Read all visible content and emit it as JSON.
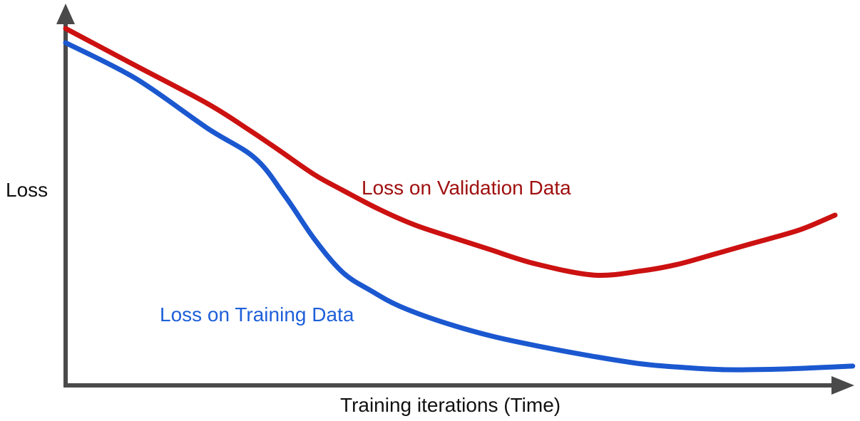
{
  "colors": {
    "background": "#ffffff",
    "axis": "#4a4a4a",
    "axis_text": "#111111",
    "validation_curve": "#cc1111",
    "validation_label": "#a00f0f",
    "training_curve": "#1b58d0",
    "training_label": "#1e5fd9"
  },
  "labels": {
    "y_axis": "Loss",
    "x_axis": "Training iterations (Time)",
    "validation_series": "Loss on Validation Data",
    "training_series": "Loss on Training Data"
  },
  "chart_data": {
    "type": "line",
    "title": "",
    "xlabel": "Training iterations (Time)",
    "ylabel": "Loss",
    "axes_style": "arrow axes, no tick marks or numeric labels; values normalized 0-100",
    "grid": false,
    "legend_position": "inline text labels next to curves",
    "x_range": [
      0,
      100
    ],
    "y_range": [
      0,
      100
    ],
    "series": [
      {
        "name": "Loss on Validation Data",
        "color": "#cc1111",
        "label_color": "#a00f0f",
        "shape": "decreases to a minimum then rises (overfitting)",
        "points": [
          [
            0,
            100
          ],
          [
            9.1,
            89.6
          ],
          [
            18.4,
            79.0
          ],
          [
            23.9,
            71.5
          ],
          [
            27.6,
            66.1
          ],
          [
            32.3,
            59.1
          ],
          [
            36.0,
            54.7
          ],
          [
            40.6,
            49.5
          ],
          [
            45.2,
            45.1
          ],
          [
            49.9,
            41.7
          ],
          [
            55.1,
            38.1
          ],
          [
            61.0,
            34.1
          ],
          [
            68.7,
            30.9
          ],
          [
            74.9,
            32.1
          ],
          [
            79.5,
            33.9
          ],
          [
            84.2,
            36.7
          ],
          [
            89.1,
            39.7
          ],
          [
            95.3,
            43.5
          ],
          [
            100,
            47.7
          ]
        ]
      },
      {
        "name": "Loss on Training Data",
        "color": "#1b58d0",
        "label_color": "#1e5fd9",
        "shape": "monotonically decreases and plateaus near zero",
        "points": [
          [
            0,
            96.0
          ],
          [
            9.1,
            86.0
          ],
          [
            18.4,
            72.1
          ],
          [
            24.6,
            63.7
          ],
          [
            28.5,
            53.1
          ],
          [
            32.3,
            41.1
          ],
          [
            36.0,
            31.7
          ],
          [
            39.7,
            26.5
          ],
          [
            43.4,
            22.2
          ],
          [
            48.9,
            17.8
          ],
          [
            55.4,
            13.8
          ],
          [
            61.9,
            10.8
          ],
          [
            68.4,
            8.2
          ],
          [
            74.9,
            6.0
          ],
          [
            80.5,
            5.0
          ],
          [
            86.0,
            4.4
          ],
          [
            93.4,
            4.6
          ],
          [
            102.3,
            5.4
          ]
        ]
      }
    ]
  }
}
